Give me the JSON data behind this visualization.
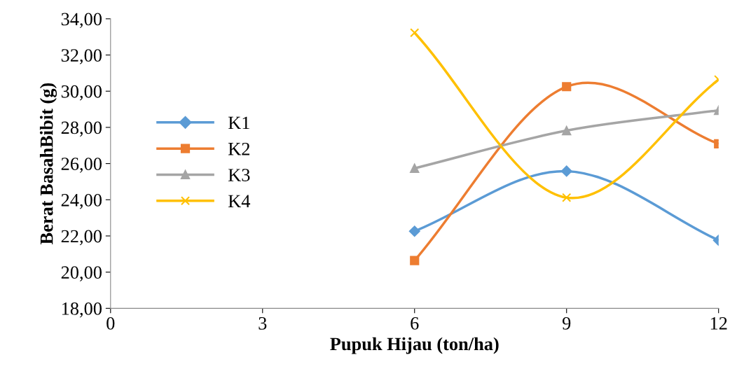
{
  "chart_data": {
    "type": "line",
    "xlabel": "Pupuk Hijau (ton/ha)",
    "ylabel": "Berat BasahBibit (g)",
    "x": [
      6,
      9,
      12
    ],
    "series": [
      {
        "name": "K1",
        "color": "#5b9bd5",
        "marker": "diamond",
        "values": [
          22.26,
          25.58,
          21.76
        ]
      },
      {
        "name": "K2",
        "color": "#ed7d31",
        "marker": "square",
        "values": [
          20.64,
          30.25,
          27.09
        ]
      },
      {
        "name": "K3",
        "color": "#a5a5a5",
        "marker": "triangle",
        "values": [
          25.74,
          27.82,
          28.94
        ]
      },
      {
        "name": "K4",
        "color": "#ffc000",
        "marker": "cross",
        "values": [
          33.23,
          24.12,
          30.64
        ]
      }
    ],
    "xlim": [
      0,
      12
    ],
    "xticks": [
      0,
      3,
      6,
      9,
      12
    ],
    "ylim": [
      18,
      34
    ],
    "yticks": [
      {
        "value": 18,
        "label": "18,00"
      },
      {
        "value": 20,
        "label": "20,00"
      },
      {
        "value": 22,
        "label": "22,00"
      },
      {
        "value": 24,
        "label": "24,00"
      },
      {
        "value": 26,
        "label": "26,00"
      },
      {
        "value": 28,
        "label": "28,00"
      },
      {
        "value": 30,
        "label": "30,00"
      },
      {
        "value": 32,
        "label": "32,00"
      },
      {
        "value": 34,
        "label": "34,00"
      }
    ],
    "grid": false,
    "legend": "left",
    "line_style": "solid"
  }
}
